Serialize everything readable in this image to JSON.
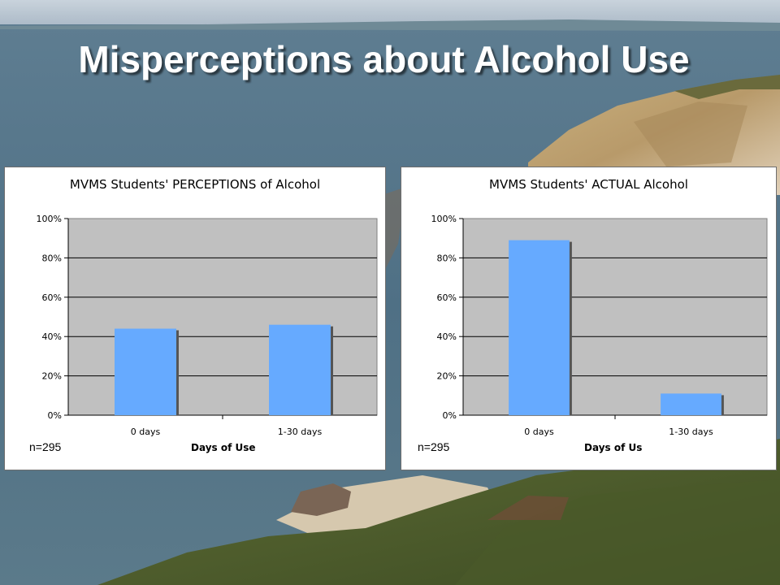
{
  "slide": {
    "title": "Misperceptions about Alcohol Use"
  },
  "charts": [
    {
      "note": "n=295"
    },
    {
      "note": "n=295"
    }
  ],
  "chart_data": [
    {
      "type": "bar",
      "title": "MVMS Students' PERCEPTIONS of Alcohol",
      "xlabel": "Days of Use",
      "ylabel": "",
      "categories": [
        "0 days",
        "1-30 days"
      ],
      "values": [
        0.44,
        0.46
      ],
      "ylim": [
        0,
        1
      ],
      "yticks": [
        "0%",
        "20%",
        "40%",
        "60%",
        "80%",
        "100%"
      ],
      "grid": true,
      "bar_color": "#66aaff",
      "plot_bg": "#c0c0c0"
    },
    {
      "type": "bar",
      "title": "MVMS Students' ACTUAL Alcohol",
      "xlabel": "Days of Us",
      "ylabel": "",
      "categories": [
        "0 days",
        "1-30 days"
      ],
      "values": [
        0.89,
        0.11
      ],
      "ylim": [
        0,
        1
      ],
      "yticks": [
        "0%",
        "20%",
        "40%",
        "60%",
        "80%",
        "100%"
      ],
      "grid": true,
      "bar_color": "#66aaff",
      "plot_bg": "#c0c0c0"
    }
  ]
}
